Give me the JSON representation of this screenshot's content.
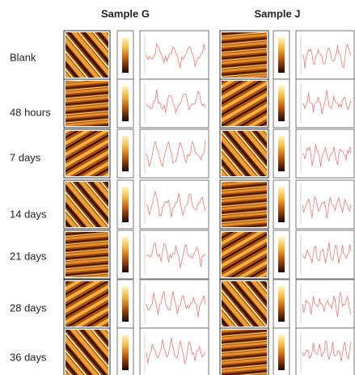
{
  "column_headers": [
    "Sample G",
    "Sample J"
  ],
  "row_labels": [
    "Blank",
    "48 hours",
    "7 days",
    "14 days",
    "21 days",
    "28 days",
    "36 days"
  ]
}
